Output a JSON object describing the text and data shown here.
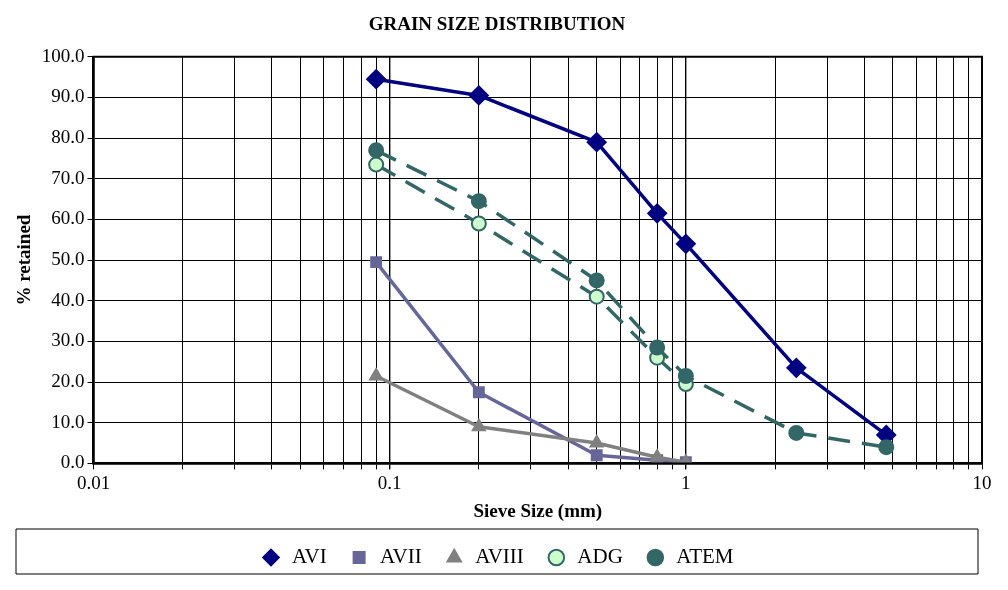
{
  "chart_data": {
    "type": "line",
    "title": "GRAIN SIZE DISTRIBUTION",
    "xlabel": "Sieve Size (mm)",
    "ylabel": "% retained",
    "log": "x",
    "grid": true,
    "legend": "bottom",
    "xlim": [
      0.01,
      10
    ],
    "ylim": [
      0,
      100
    ],
    "xticks": [
      0.01,
      {
        "value": 0.02,
        "label": null
      },
      {
        "value": 0.03,
        "label": null
      },
      {
        "value": 0.04,
        "label": null
      },
      {
        "value": 0.05,
        "label": null
      },
      {
        "value": 0.06,
        "label": null
      },
      {
        "value": 0.07,
        "label": null
      },
      {
        "value": 0.08,
        "label": null
      },
      {
        "value": 0.09,
        "label": null
      },
      0.1,
      {
        "value": 0.2,
        "label": null
      },
      {
        "value": 0.3,
        "label": null
      },
      {
        "value": 0.4,
        "label": null
      },
      {
        "value": 0.5,
        "label": null
      },
      {
        "value": 0.6,
        "label": null
      },
      {
        "value": 0.7,
        "label": null
      },
      {
        "value": 0.8,
        "label": null
      },
      {
        "value": 0.9,
        "label": null
      },
      1,
      {
        "value": 2,
        "label": null
      },
      {
        "value": 3,
        "label": null
      },
      {
        "value": 4,
        "label": null
      },
      {
        "value": 5,
        "label": null
      },
      {
        "value": 6,
        "label": null
      },
      {
        "value": 7,
        "label": null
      },
      {
        "value": 8,
        "label": null
      },
      {
        "value": 9,
        "label": null
      },
      10
    ],
    "yticks": [
      {
        "value": 0,
        "label": "0.0"
      },
      {
        "value": 10,
        "label": "10.0"
      },
      {
        "value": 20,
        "label": "20.0"
      },
      {
        "value": 30,
        "label": "30.0"
      },
      {
        "value": 40,
        "label": "40.0"
      },
      {
        "value": 50,
        "label": "50.0"
      },
      {
        "value": 60,
        "label": "60.0"
      },
      {
        "value": 70,
        "label": "70.0"
      },
      {
        "value": 80,
        "label": "80.0"
      },
      {
        "value": 90,
        "label": "90.0"
      },
      {
        "value": 100,
        "label": "100.0"
      }
    ],
    "series": [
      {
        "name": "AVI",
        "color": "#000080",
        "marker": "diamond",
        "line_style": "solid",
        "x": [
          0.09,
          0.2,
          0.5,
          0.8,
          1,
          2.36,
          4.75
        ],
        "values": [
          94.5,
          90.5,
          79,
          61.5,
          54,
          23.5,
          7
        ]
      },
      {
        "name": "AVII",
        "color": "#666699",
        "marker": "square",
        "line_style": "solid",
        "x": [
          0.09,
          0.2,
          0.5,
          0.8,
          1
        ],
        "values": [
          49.5,
          17.5,
          2,
          0.8,
          0.3
        ]
      },
      {
        "name": "AVIII",
        "color": "#808080",
        "marker": "triangle",
        "line_style": "solid",
        "x": [
          0.09,
          0.2,
          0.5,
          0.8,
          1
        ],
        "values": [
          21.5,
          9,
          5,
          1.5,
          0.3
        ]
      },
      {
        "name": "ADG",
        "color": "#336666",
        "colors": [
          "#ccffcc",
          "#ccffcc",
          "#ccffcc",
          "#ccffcc",
          "#ccffcc"
        ],
        "marker": "circle",
        "line_style": "dashed",
        "x": [
          0.09,
          0.2,
          0.5,
          0.8,
          1
        ],
        "values": [
          73.5,
          59,
          41,
          26,
          19.5
        ]
      },
      {
        "name": "ATEM",
        "color": "#336666",
        "marker": "circle",
        "line_style": "dashed",
        "x": [
          0.09,
          0.2,
          0.5,
          0.8,
          1,
          2.36,
          4.75
        ],
        "values": [
          77,
          64.5,
          45,
          28.5,
          21.5,
          7.5,
          4
        ]
      }
    ]
  }
}
